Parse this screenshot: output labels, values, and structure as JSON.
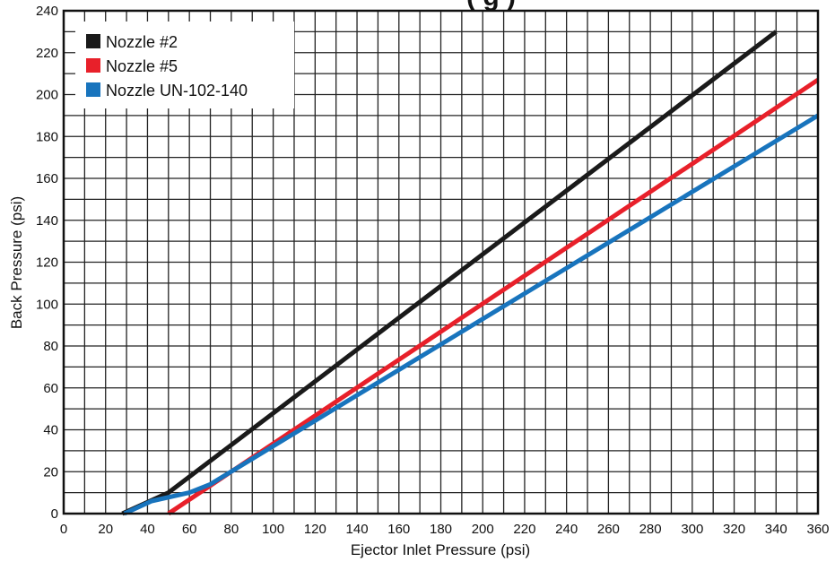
{
  "chart_data": {
    "type": "line",
    "title": "(                    g  )",
    "xlabel": "Ejector Inlet Pressure (psi)",
    "ylabel": "Back Pressure (psi)",
    "xlim": [
      0,
      360
    ],
    "ylim": [
      0,
      240
    ],
    "x_ticks": [
      0,
      20,
      40,
      60,
      80,
      100,
      120,
      140,
      160,
      180,
      200,
      220,
      240,
      260,
      280,
      300,
      320,
      340,
      360
    ],
    "y_ticks": [
      0,
      20,
      40,
      60,
      80,
      100,
      120,
      140,
      160,
      180,
      200,
      220,
      240
    ],
    "grid": true,
    "minor_grid_step_x": 10,
    "minor_grid_step_y": 10,
    "legend_position": "top-left",
    "series": [
      {
        "name": "Nozzle #2",
        "color": "#1a1a1a",
        "points": [
          [
            28,
            0
          ],
          [
            50,
            10
          ],
          [
            340,
            230
          ]
        ]
      },
      {
        "name": "Nozzle #5",
        "color": "#e8202a",
        "points": [
          [
            50,
            0
          ],
          [
            360,
            207
          ]
        ]
      },
      {
        "name": "Nozzle UN-102-140",
        "color": "#1874bd",
        "points": [
          [
            29,
            0
          ],
          [
            42,
            6
          ],
          [
            60,
            10
          ],
          [
            70,
            14
          ],
          [
            360,
            190
          ]
        ]
      }
    ]
  }
}
